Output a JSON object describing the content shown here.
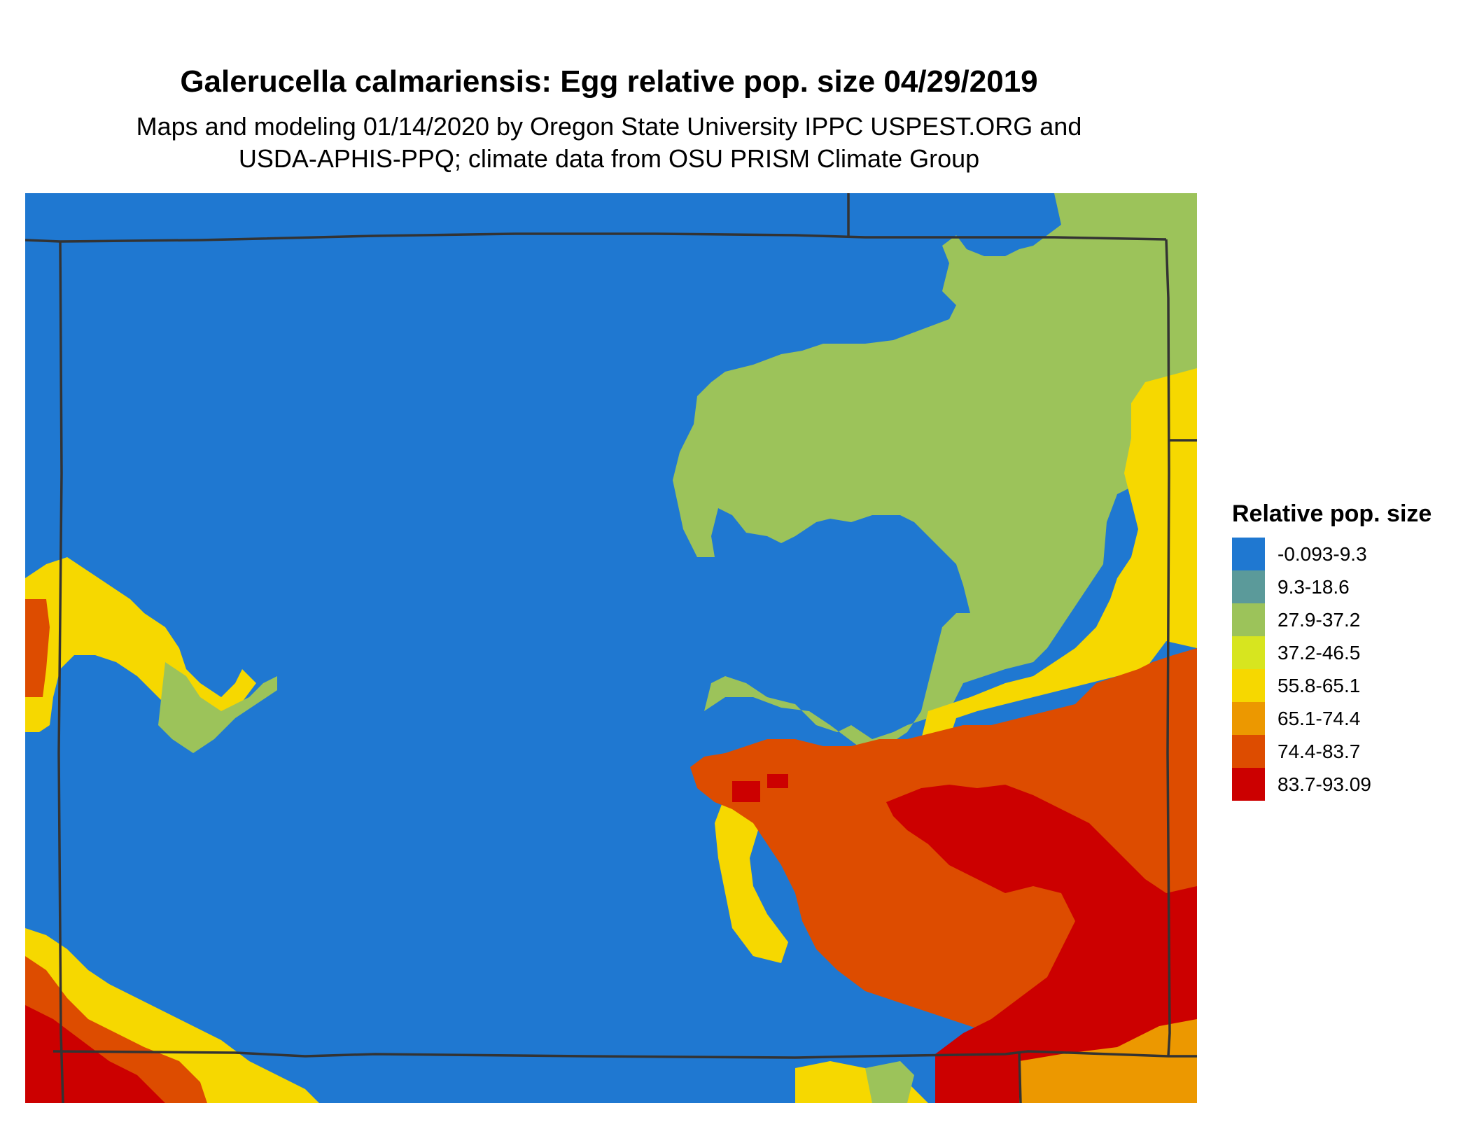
{
  "title": "Galerucella calmariensis: Egg relative pop. size 04/29/2019",
  "subtitle_line1": "Maps and modeling 01/14/2020 by Oregon State University IPPC USPEST.ORG and",
  "subtitle_line2": "USDA-APHIS-PPQ; climate data from OSU PRISM Climate Group",
  "legend": {
    "title": "Relative pop. size",
    "items": [
      {
        "label": "-0.093-9.3",
        "color": "#1f78d1"
      },
      {
        "label": "9.3-18.6",
        "color": "#5b9a9a"
      },
      {
        "label": "27.9-37.2",
        "color": "#9cc35a"
      },
      {
        "label": "37.2-46.5",
        "color": "#d7e51f"
      },
      {
        "label": "55.8-65.1",
        "color": "#f6d800"
      },
      {
        "label": "65.1-74.4",
        "color": "#ec9800"
      },
      {
        "label": "74.4-83.7",
        "color": "#dd4c00"
      },
      {
        "label": "83.7-93.09",
        "color": "#cc0000"
      }
    ]
  },
  "colors": {
    "background": "#1f78d1",
    "boundary": "#333333"
  }
}
